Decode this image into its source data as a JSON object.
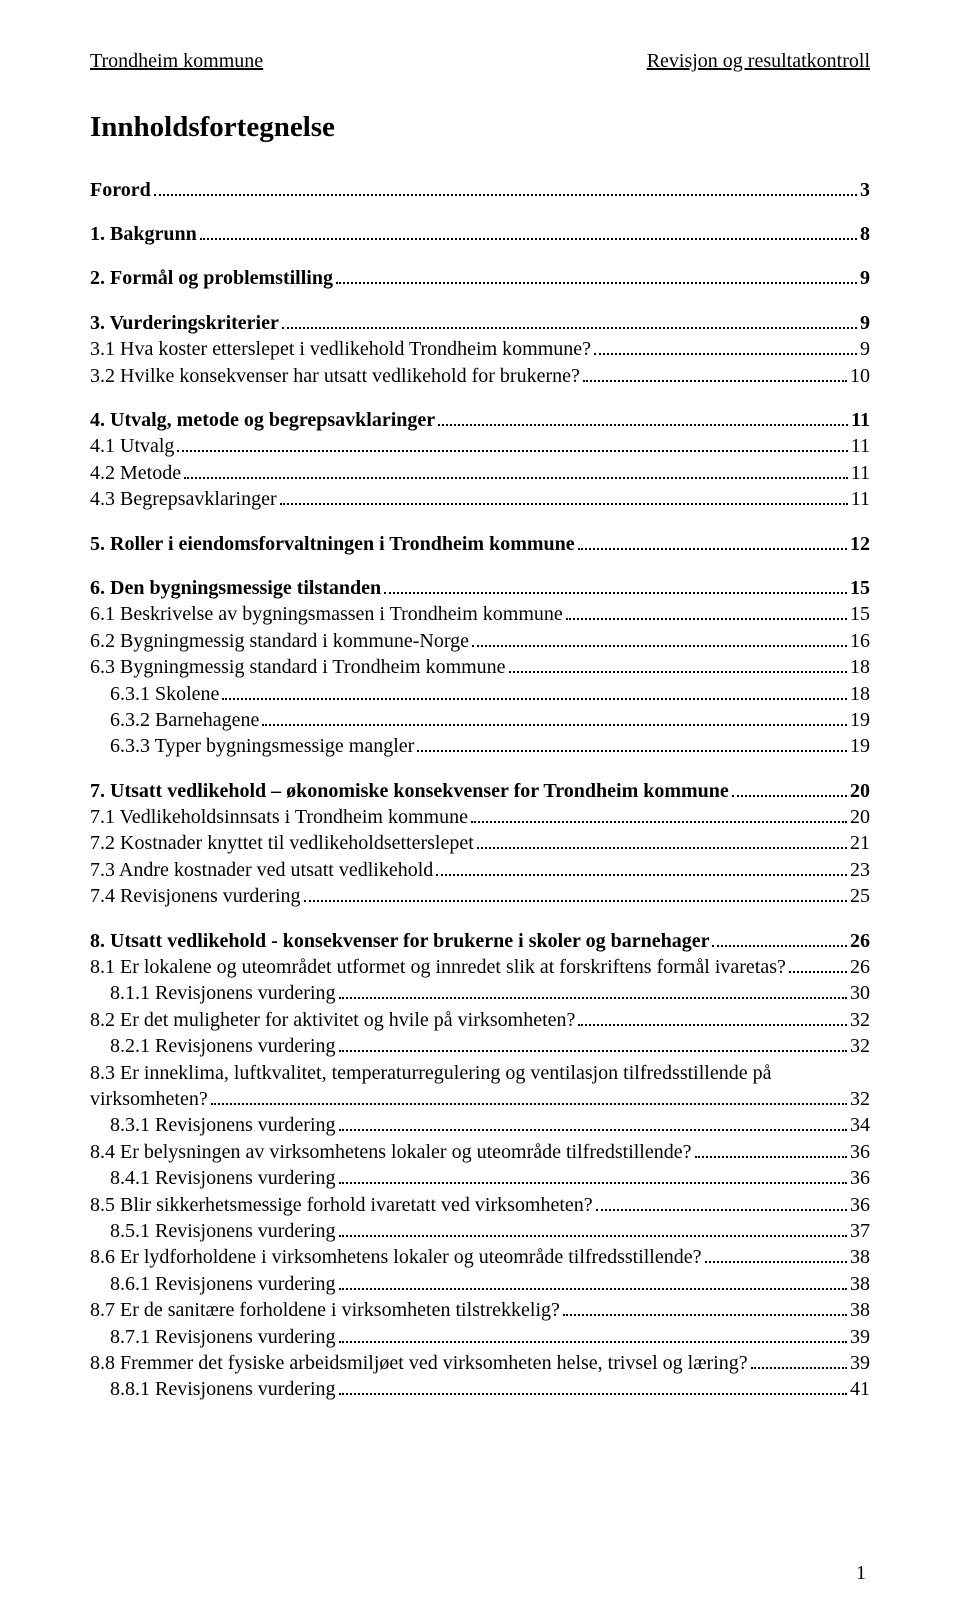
{
  "header": {
    "left": "Trondheim kommune",
    "right": "Revisjon og resultatkontroll"
  },
  "title": "Innholdsfortegnelse",
  "pageNumber": "1",
  "toc": [
    {
      "label": "Forord",
      "page": "3",
      "bold": true,
      "indent": 0
    },
    {
      "gap": true
    },
    {
      "label": "1. Bakgrunn",
      "page": "8",
      "bold": true,
      "indent": 0
    },
    {
      "gap": true
    },
    {
      "label": "2. Formål og problemstilling",
      "page": "9",
      "bold": true,
      "indent": 0
    },
    {
      "gap": true
    },
    {
      "label": "3. Vurderingskriterier",
      "page": "9",
      "bold": true,
      "indent": 0
    },
    {
      "label": "3.1 Hva koster etterslepet i vedlikehold Trondheim kommune?",
      "page": "9",
      "bold": false,
      "indent": 0
    },
    {
      "label": "3.2 Hvilke konsekvenser har utsatt vedlikehold for brukerne?",
      "page": "10",
      "bold": false,
      "indent": 0
    },
    {
      "gap": true
    },
    {
      "label": "4. Utvalg, metode og begrepsavklaringer",
      "page": "11",
      "bold": true,
      "indent": 0
    },
    {
      "label": "4.1 Utvalg",
      "page": "11",
      "bold": false,
      "indent": 0
    },
    {
      "label": "4.2 Metode",
      "page": "11",
      "bold": false,
      "indent": 0
    },
    {
      "label": "4.3 Begrepsavklaringer",
      "page": "11",
      "bold": false,
      "indent": 0
    },
    {
      "gap": true
    },
    {
      "label": "5. Roller i eiendomsforvaltningen i Trondheim kommune",
      "page": "12",
      "bold": true,
      "indent": 0
    },
    {
      "gap": true
    },
    {
      "label": "6. Den bygningsmessige tilstanden",
      "page": "15",
      "bold": true,
      "indent": 0
    },
    {
      "label": "6.1 Beskrivelse av bygningsmassen i Trondheim kommune",
      "page": "15",
      "bold": false,
      "indent": 0
    },
    {
      "label": "6.2 Bygningmessig standard i kommune-Norge",
      "page": "16",
      "bold": false,
      "indent": 0
    },
    {
      "label": "6.3 Bygningmessig standard i Trondheim kommune",
      "page": "18",
      "bold": false,
      "indent": 0
    },
    {
      "label": "6.3.1 Skolene",
      "page": "18",
      "bold": false,
      "indent": 1
    },
    {
      "label": "6.3.2 Barnehagene",
      "page": "19",
      "bold": false,
      "indent": 1
    },
    {
      "label": "6.3.3 Typer bygningsmessige mangler",
      "page": "19",
      "bold": false,
      "indent": 1
    },
    {
      "gap": true
    },
    {
      "label": "7. Utsatt vedlikehold – økonomiske konsekvenser for Trondheim kommune",
      "page": "20",
      "bold": true,
      "indent": 0
    },
    {
      "label": "7.1 Vedlikeholdsinnsats i Trondheim kommune",
      "page": "20",
      "bold": false,
      "indent": 0
    },
    {
      "label": "7.2 Kostnader knyttet til vedlikeholdsetterslepet",
      "page": "21",
      "bold": false,
      "indent": 0
    },
    {
      "label": "7.3 Andre kostnader ved utsatt vedlikehold",
      "page": "23",
      "bold": false,
      "indent": 0
    },
    {
      "label": "7.4 Revisjonens vurdering",
      "page": "25",
      "bold": false,
      "indent": 0
    },
    {
      "gap": true
    },
    {
      "label": "8. Utsatt vedlikehold - konsekvenser for brukerne i skoler og barnehager",
      "page": "26",
      "bold": true,
      "indent": 0
    },
    {
      "label": "8.1 Er lokalene og uteområdet utformet og innredet slik at forskriftens formål ivaretas?",
      "page": "26",
      "bold": false,
      "indent": 0
    },
    {
      "label": "8.1.1 Revisjonens vurdering",
      "page": "30",
      "bold": false,
      "indent": 1
    },
    {
      "label": "8.2 Er det muligheter for aktivitet og hvile på virksomheten?",
      "page": "32",
      "bold": false,
      "indent": 0
    },
    {
      "label": "8.2.1 Revisjonens vurdering",
      "page": "32",
      "bold": false,
      "indent": 1
    },
    {
      "label": "8.3 Er inneklima, luftkvalitet, temperaturregulering og ventilasjon tilfredsstillende på virksomheten?",
      "page": "32",
      "bold": false,
      "indent": 0,
      "wrap": true
    },
    {
      "label": "8.3.1 Revisjonens vurdering",
      "page": "34",
      "bold": false,
      "indent": 1
    },
    {
      "label": "8.4 Er belysningen av virksomhetens lokaler og uteområde tilfredstillende?",
      "page": "36",
      "bold": false,
      "indent": 0
    },
    {
      "label": "8.4.1 Revisjonens vurdering",
      "page": "36",
      "bold": false,
      "indent": 1
    },
    {
      "label": "8.5 Blir sikkerhetsmessige forhold ivaretatt ved virksomheten?",
      "page": "36",
      "bold": false,
      "indent": 0
    },
    {
      "label": "8.5.1 Revisjonens vurdering",
      "page": "37",
      "bold": false,
      "indent": 1
    },
    {
      "label": "8.6 Er lydforholdene i virksomhetens lokaler og uteområde tilfredsstillende?",
      "page": "38",
      "bold": false,
      "indent": 0
    },
    {
      "label": "8.6.1 Revisjonens vurdering",
      "page": "38",
      "bold": false,
      "indent": 1
    },
    {
      "label": "8.7 Er de sanitære forholdene i virksomheten tilstrekkelig?",
      "page": "38",
      "bold": false,
      "indent": 0
    },
    {
      "label": "8.7.1 Revisjonens vurdering",
      "page": "39",
      "bold": false,
      "indent": 1
    },
    {
      "label": "8.8 Fremmer det fysiske arbeidsmiljøet ved virksomheten helse, trivsel og læring?",
      "page": "39",
      "bold": false,
      "indent": 0
    },
    {
      "label": "8.8.1 Revisjonens vurdering",
      "page": "41",
      "bold": false,
      "indent": 1
    }
  ]
}
